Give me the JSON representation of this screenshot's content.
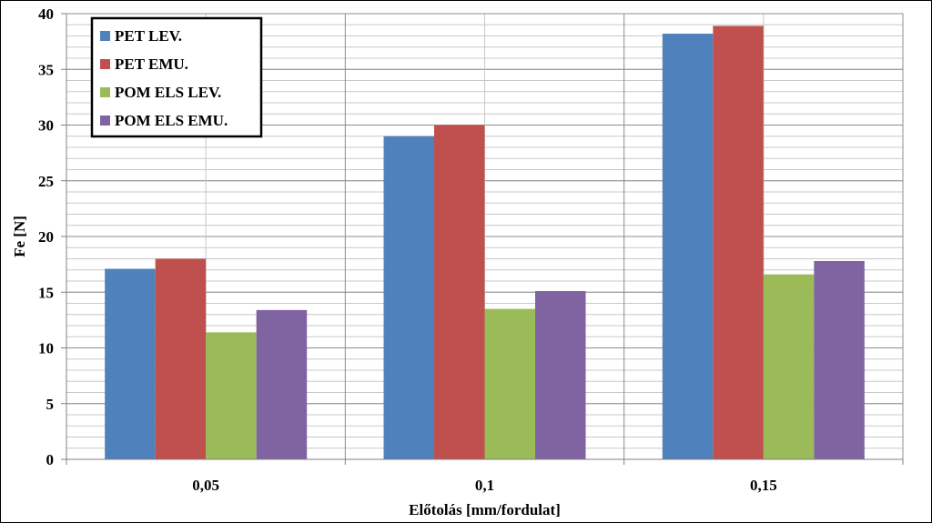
{
  "chart_data": {
    "type": "bar",
    "title": "",
    "xlabel": "Előtolás [mm/fordulat]",
    "ylabel": "Fe [N]",
    "categories": [
      "0,05",
      "0,1",
      "0,15"
    ],
    "ylim": [
      0,
      40
    ],
    "ytick_step": 5,
    "minor_grid_step": 1,
    "grid": true,
    "legend_position": "top-left",
    "series": [
      {
        "name": "PET LEV.",
        "color": "#4F81BD",
        "values": [
          17.1,
          29.0,
          38.2
        ]
      },
      {
        "name": "PET EMU.",
        "color": "#C0504D",
        "values": [
          18.0,
          30.0,
          38.9
        ]
      },
      {
        "name": "POM ELS LEV.",
        "color": "#9BBB59",
        "values": [
          11.4,
          13.5,
          16.6
        ]
      },
      {
        "name": "POM ELS EMU.",
        "color": "#8064A2",
        "values": [
          13.4,
          15.1,
          17.8
        ]
      }
    ]
  }
}
